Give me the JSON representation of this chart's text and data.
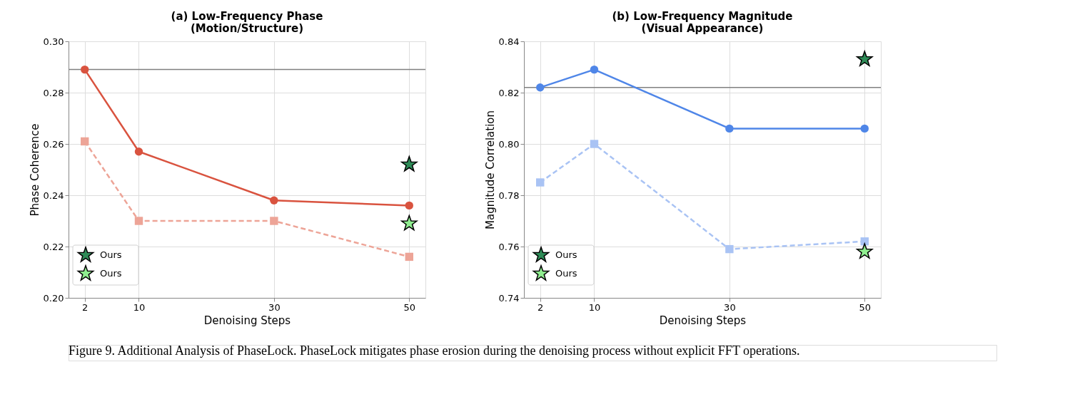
{
  "chart_data": [
    {
      "type": "line",
      "title": "(a) Low-Frequency Phase\n(Motion/Structure)",
      "xlabel": "Denoising Steps",
      "ylabel": "Phase Coherence",
      "xlim": [
        -0.4,
        52.4
      ],
      "xticks": [
        2,
        10,
        30,
        50
      ],
      "ylim": [
        0.2,
        0.3
      ],
      "yticks": [
        {
          "value": 0.2,
          "label": "0.20"
        },
        0.22,
        0.24,
        0.26,
        0.28,
        {
          "value": 0.3,
          "label": "0.30"
        }
      ],
      "grid": true,
      "legend": "bottom left",
      "ref_lines": [
        {
          "axis": "y",
          "value": 0.289,
          "color": "#808080"
        }
      ],
      "series": [
        {
          "type": "line",
          "x": [
            2,
            10,
            30,
            50
          ],
          "values": [
            0.289,
            0.257,
            0.238,
            0.236
          ],
          "color": "#d9533f",
          "marker": "circle",
          "line_style": "solid"
        },
        {
          "type": "line",
          "x": [
            2,
            10,
            30,
            50
          ],
          "values": [
            0.261,
            0.23,
            0.23,
            0.216
          ],
          "color": "#eda497",
          "marker": "square",
          "line_style": "dashed"
        },
        {
          "type": "scatter",
          "name": "Ours",
          "x": [
            50
          ],
          "values": [
            0.252
          ],
          "color": "#2e8b57",
          "marker": "star"
        },
        {
          "type": "scatter",
          "name": "Ours",
          "x": [
            50
          ],
          "values": [
            0.229
          ],
          "color": "#90ee90",
          "marker": "star"
        }
      ]
    },
    {
      "type": "line",
      "title": "(b) Low-Frequency Magnitude\n(Visual Appearance)",
      "xlabel": "Denoising Steps",
      "ylabel": "Magnitude Correlation",
      "xlim": [
        -0.4,
        52.4
      ],
      "xticks": [
        2,
        10,
        30,
        50
      ],
      "ylim": [
        0.74,
        0.84
      ],
      "yticks": [
        0.74,
        0.76,
        0.78,
        {
          "value": 0.8,
          "label": "0.80"
        },
        0.82,
        0.84
      ],
      "grid": true,
      "legend": "bottom left",
      "ref_lines": [
        {
          "axis": "y",
          "value": 0.822,
          "color": "#808080"
        }
      ],
      "annotations": [
        "Figure 9. Additional Analysis of PhaseLock. PhaseLock mitigates phase erosion during the denoising process without explicit FFT operations."
      ],
      "series": [
        {
          "type": "line",
          "x": [
            2,
            10,
            30,
            50
          ],
          "values": [
            0.822,
            0.829,
            0.806,
            0.806
          ],
          "color": "#4f86e8",
          "marker": "circle",
          "line_style": "solid"
        },
        {
          "type": "line",
          "x": [
            2,
            10,
            30,
            50
          ],
          "values": [
            0.785,
            0.8,
            0.759,
            0.762
          ],
          "color": "#a9c3f4",
          "marker": "square",
          "line_style": "dashed"
        },
        {
          "type": "scatter",
          "name": "Ours",
          "x": [
            50
          ],
          "values": [
            0.833
          ],
          "color": "#2e8b57",
          "marker": "star"
        },
        {
          "type": "scatter",
          "name": "Ours",
          "x": [
            50
          ],
          "values": [
            0.758
          ],
          "color": "#90ee90",
          "marker": "star"
        }
      ]
    }
  ]
}
